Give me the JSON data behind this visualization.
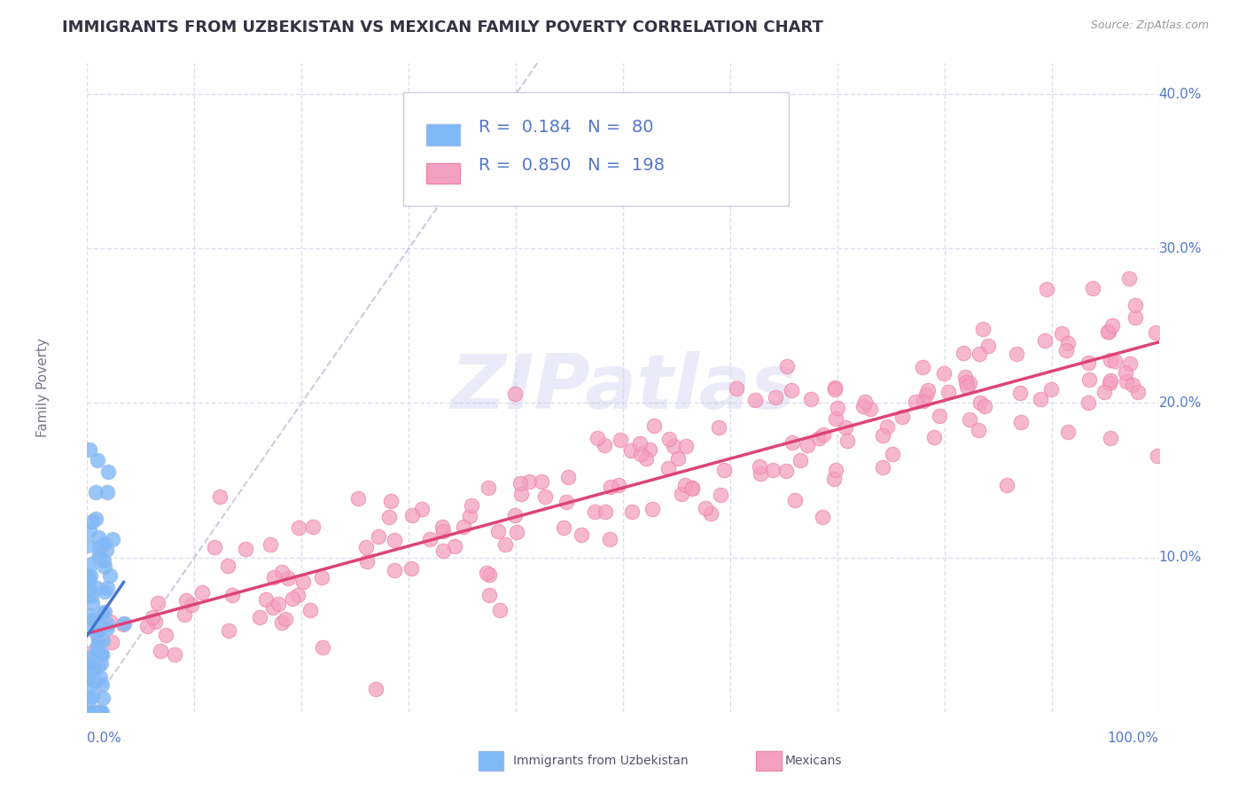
{
  "title": "IMMIGRANTS FROM UZBEKISTAN VS MEXICAN FAMILY POVERTY CORRELATION CHART",
  "source_text": "Source: ZipAtlas.com",
  "ylabel": "Family Poverty",
  "xlim": [
    0,
    1.0
  ],
  "ylim": [
    0,
    0.42
  ],
  "yticks": [
    0.1,
    0.2,
    0.3,
    0.4
  ],
  "yticklabels_right": [
    "10.0%",
    "20.0%",
    "30.0%",
    "40.0%"
  ],
  "xticklabel_left": "0.0%",
  "xticklabel_right": "100.0%",
  "color_uzb": "#7EB8F7",
  "color_mex": "#F4A0C0",
  "color_uzb_border": "#99BBEE",
  "color_mex_border": "#EE88AA",
  "color_uzb_line": "#4477CC",
  "color_mex_line": "#DD4477",
  "color_diag": "#CCCCDD",
  "watermark": "ZIPatlas",
  "watermark_color_main": "#CCCCEE",
  "background_color": "#FFFFFF",
  "grid_color": "#DDDDEE",
  "title_fontsize": 13,
  "label_fontsize": 11,
  "tick_fontsize": 11,
  "legend_fontsize": 14,
  "N_uzb": 80,
  "N_mex": 198,
  "R_uzb": 0.184,
  "R_mex": 0.85,
  "ytick_color": "#5577CC",
  "xtick_color": "#5577CC"
}
